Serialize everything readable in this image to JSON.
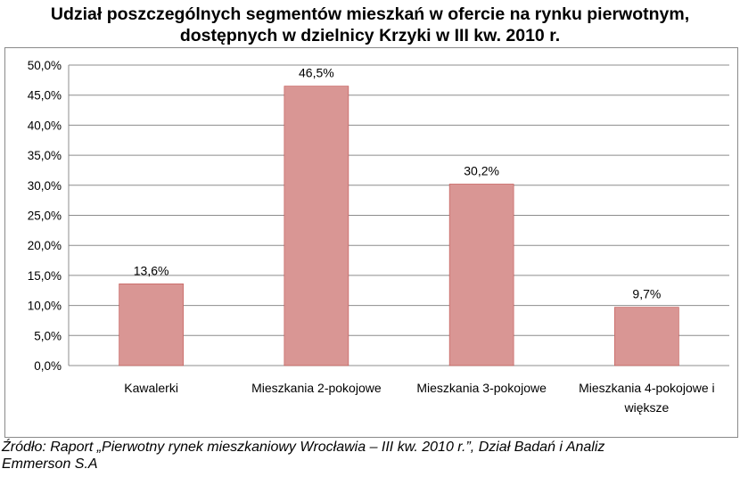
{
  "chart_data": {
    "type": "bar",
    "title_lines": [
      "Udział poszczególnych segmentów mieszkań w ofercie na rynku pierwotnym,",
      "dostępnych w dzielnicy Krzyki w III kw. 2010 r."
    ],
    "categories": [
      [
        "Kawalerki"
      ],
      [
        "Mieszkania 2-pokojowe"
      ],
      [
        "Mieszkania 3-pokojowe"
      ],
      [
        "Mieszkania 4-pokojowe i",
        "większe"
      ]
    ],
    "values": [
      13.6,
      46.5,
      30.2,
      9.7
    ],
    "data_labels": [
      "13,6%",
      "46,5%",
      "30,2%",
      "9,7%"
    ],
    "y_ticks": [
      "0,0%",
      "5,0%",
      "10,0%",
      "15,0%",
      "20,0%",
      "25,0%",
      "30,0%",
      "35,0%",
      "40,0%",
      "45,0%",
      "50,0%"
    ],
    "ylim": [
      0,
      50
    ],
    "grid": true,
    "bar_color": "#D99694",
    "bar_edge_color": "#C0504D"
  },
  "source_lines": [
    "Źródło: Raport „Pierwotny rynek mieszkaniowy Wrocławia – III kw. 2010 r.”, Dział Badań i Analiz",
    "Emmerson S.A"
  ]
}
